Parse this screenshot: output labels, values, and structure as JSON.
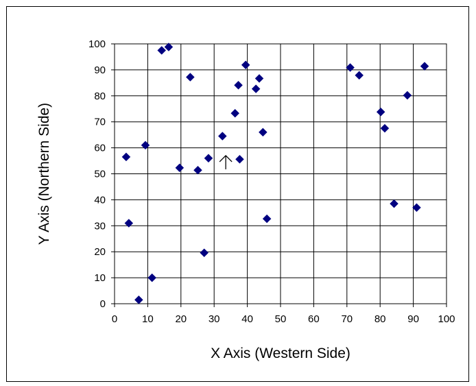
{
  "chart_data": {
    "type": "scatter",
    "xlabel": "X Axis (Western Side)",
    "ylabel": "Y Axis (Northern Side)",
    "xlim": [
      0,
      100
    ],
    "ylim": [
      0,
      100
    ],
    "xticks": [
      "0",
      "10",
      "20",
      "30",
      "40",
      "50",
      "60",
      "70",
      "80",
      "90",
      "100"
    ],
    "yticks": [
      "0",
      "10",
      "20",
      "30",
      "40",
      "50",
      "60",
      "70",
      "80",
      "90",
      "100"
    ],
    "grid": true,
    "legend": "none",
    "marker": "diamond",
    "marker_color": "#000080",
    "annotation": {
      "type": "arrow",
      "x": 33.5,
      "y": 57,
      "direction": "up"
    },
    "points": [
      {
        "x": 3.5,
        "y": 56.5
      },
      {
        "x": 4.3,
        "y": 31
      },
      {
        "x": 7.3,
        "y": 1.5
      },
      {
        "x": 9.3,
        "y": 61
      },
      {
        "x": 11.3,
        "y": 10
      },
      {
        "x": 14.2,
        "y": 97.5
      },
      {
        "x": 16.3,
        "y": 98.8
      },
      {
        "x": 19.6,
        "y": 52.3
      },
      {
        "x": 22.8,
        "y": 87.2
      },
      {
        "x": 25.1,
        "y": 51.4
      },
      {
        "x": 27,
        "y": 19.6
      },
      {
        "x": 28.3,
        "y": 56
      },
      {
        "x": 32.5,
        "y": 64.5
      },
      {
        "x": 36.3,
        "y": 73.3
      },
      {
        "x": 37.3,
        "y": 84.1
      },
      {
        "x": 37.7,
        "y": 55.6
      },
      {
        "x": 39.5,
        "y": 91.9
      },
      {
        "x": 42.6,
        "y": 82.7
      },
      {
        "x": 43.6,
        "y": 86.7
      },
      {
        "x": 44.7,
        "y": 66
      },
      {
        "x": 45.9,
        "y": 32.7
      },
      {
        "x": 71,
        "y": 90.9
      },
      {
        "x": 73.7,
        "y": 87.9
      },
      {
        "x": 80.2,
        "y": 73.8
      },
      {
        "x": 81.4,
        "y": 67.5
      },
      {
        "x": 84.2,
        "y": 38.5
      },
      {
        "x": 88.2,
        "y": 80.2
      },
      {
        "x": 91,
        "y": 37
      },
      {
        "x": 93.4,
        "y": 91.4
      }
    ]
  }
}
